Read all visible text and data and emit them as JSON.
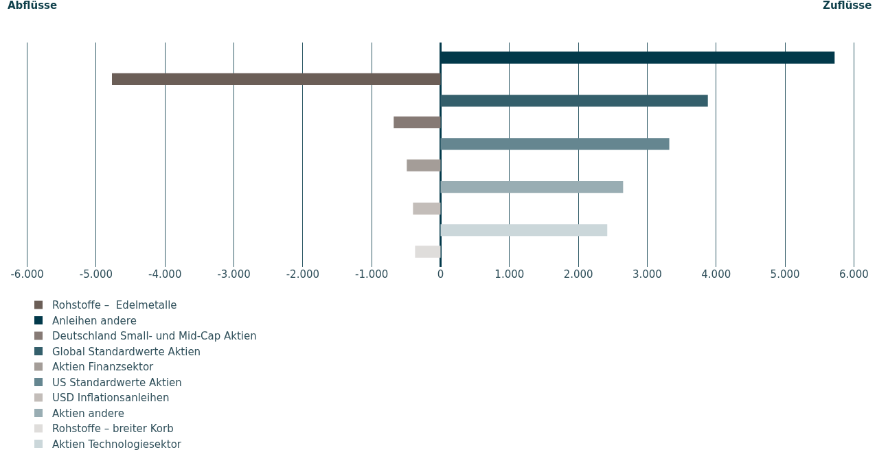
{
  "chart_data": {
    "type": "bar",
    "orientation": "horizontal",
    "categories": [
      null,
      null,
      null,
      null,
      null,
      null,
      null,
      null,
      null,
      null
    ],
    "series": [
      {
        "name": "Rohstoffe –  Edelmetalle",
        "color": "#6b5e57",
        "values": [
          null,
          -4770,
          null,
          null,
          null,
          null,
          null,
          null,
          null,
          null
        ]
      },
      {
        "name": "Anleihen andere",
        "color": "#02394a",
        "values": [
          5720,
          null,
          null,
          null,
          null,
          null,
          null,
          null,
          null,
          null
        ]
      },
      {
        "name": "Deutschland Small- und Mid-Cap Aktien",
        "color": "#867a75",
        "values": [
          null,
          null,
          null,
          -680,
          null,
          null,
          null,
          null,
          null,
          null
        ]
      },
      {
        "name": "Global Standardwerte Aktien",
        "color": "#345f6b",
        "values": [
          null,
          null,
          3880,
          null,
          null,
          null,
          null,
          null,
          null,
          null
        ]
      },
      {
        "name": "Aktien Finanzsektor",
        "color": "#a49d98",
        "values": [
          null,
          null,
          null,
          null,
          null,
          -490,
          null,
          null,
          null,
          null
        ]
      },
      {
        "name": "US Standardwerte Aktien",
        "color": "#658690",
        "values": [
          null,
          null,
          null,
          null,
          3320,
          null,
          null,
          null,
          null,
          null
        ]
      },
      {
        "name": "USD Inflationsanleihen",
        "color": "#c3bdb9",
        "values": [
          null,
          null,
          null,
          null,
          null,
          null,
          null,
          -400,
          null,
          null
        ]
      },
      {
        "name": "Aktien andere",
        "color": "#99adb3",
        "values": [
          null,
          null,
          null,
          null,
          null,
          null,
          2650,
          null,
          null,
          null
        ]
      },
      {
        "name": "Rohstoffe – breiter Korb",
        "color": "#dfdddb",
        "values": [
          null,
          null,
          null,
          null,
          null,
          null,
          null,
          null,
          null,
          -370
        ]
      },
      {
        "name": "Aktien Technologiesektor",
        "color": "#cbd7da",
        "values": [
          null,
          null,
          null,
          null,
          null,
          null,
          null,
          null,
          2420,
          null
        ]
      }
    ],
    "xlim": [
      -6000,
      6000
    ],
    "xticks": [
      {
        "value": -6000,
        "label": "-6.000"
      },
      {
        "value": -5000,
        "label": "-5.000"
      },
      {
        "value": -4000,
        "label": "-4.000"
      },
      {
        "value": -3000,
        "label": "-3.000"
      },
      {
        "value": -2000,
        "label": "-2.000"
      },
      {
        "value": -1000,
        "label": "-1.000"
      },
      0,
      {
        "value": 1000,
        "label": "1.000"
      },
      {
        "value": 2000,
        "label": "2.000"
      },
      {
        "value": 3000,
        "label": "3.000"
      },
      {
        "value": 4000,
        "label": "4.000"
      },
      {
        "value": 5000,
        "label": "5.000"
      },
      {
        "value": 6000,
        "label": "6.000"
      }
    ],
    "annotations": [
      "Abflüsse",
      "Zuflüsse"
    ],
    "grid": "x",
    "legend": "bottom",
    "tick_labels": "x"
  }
}
